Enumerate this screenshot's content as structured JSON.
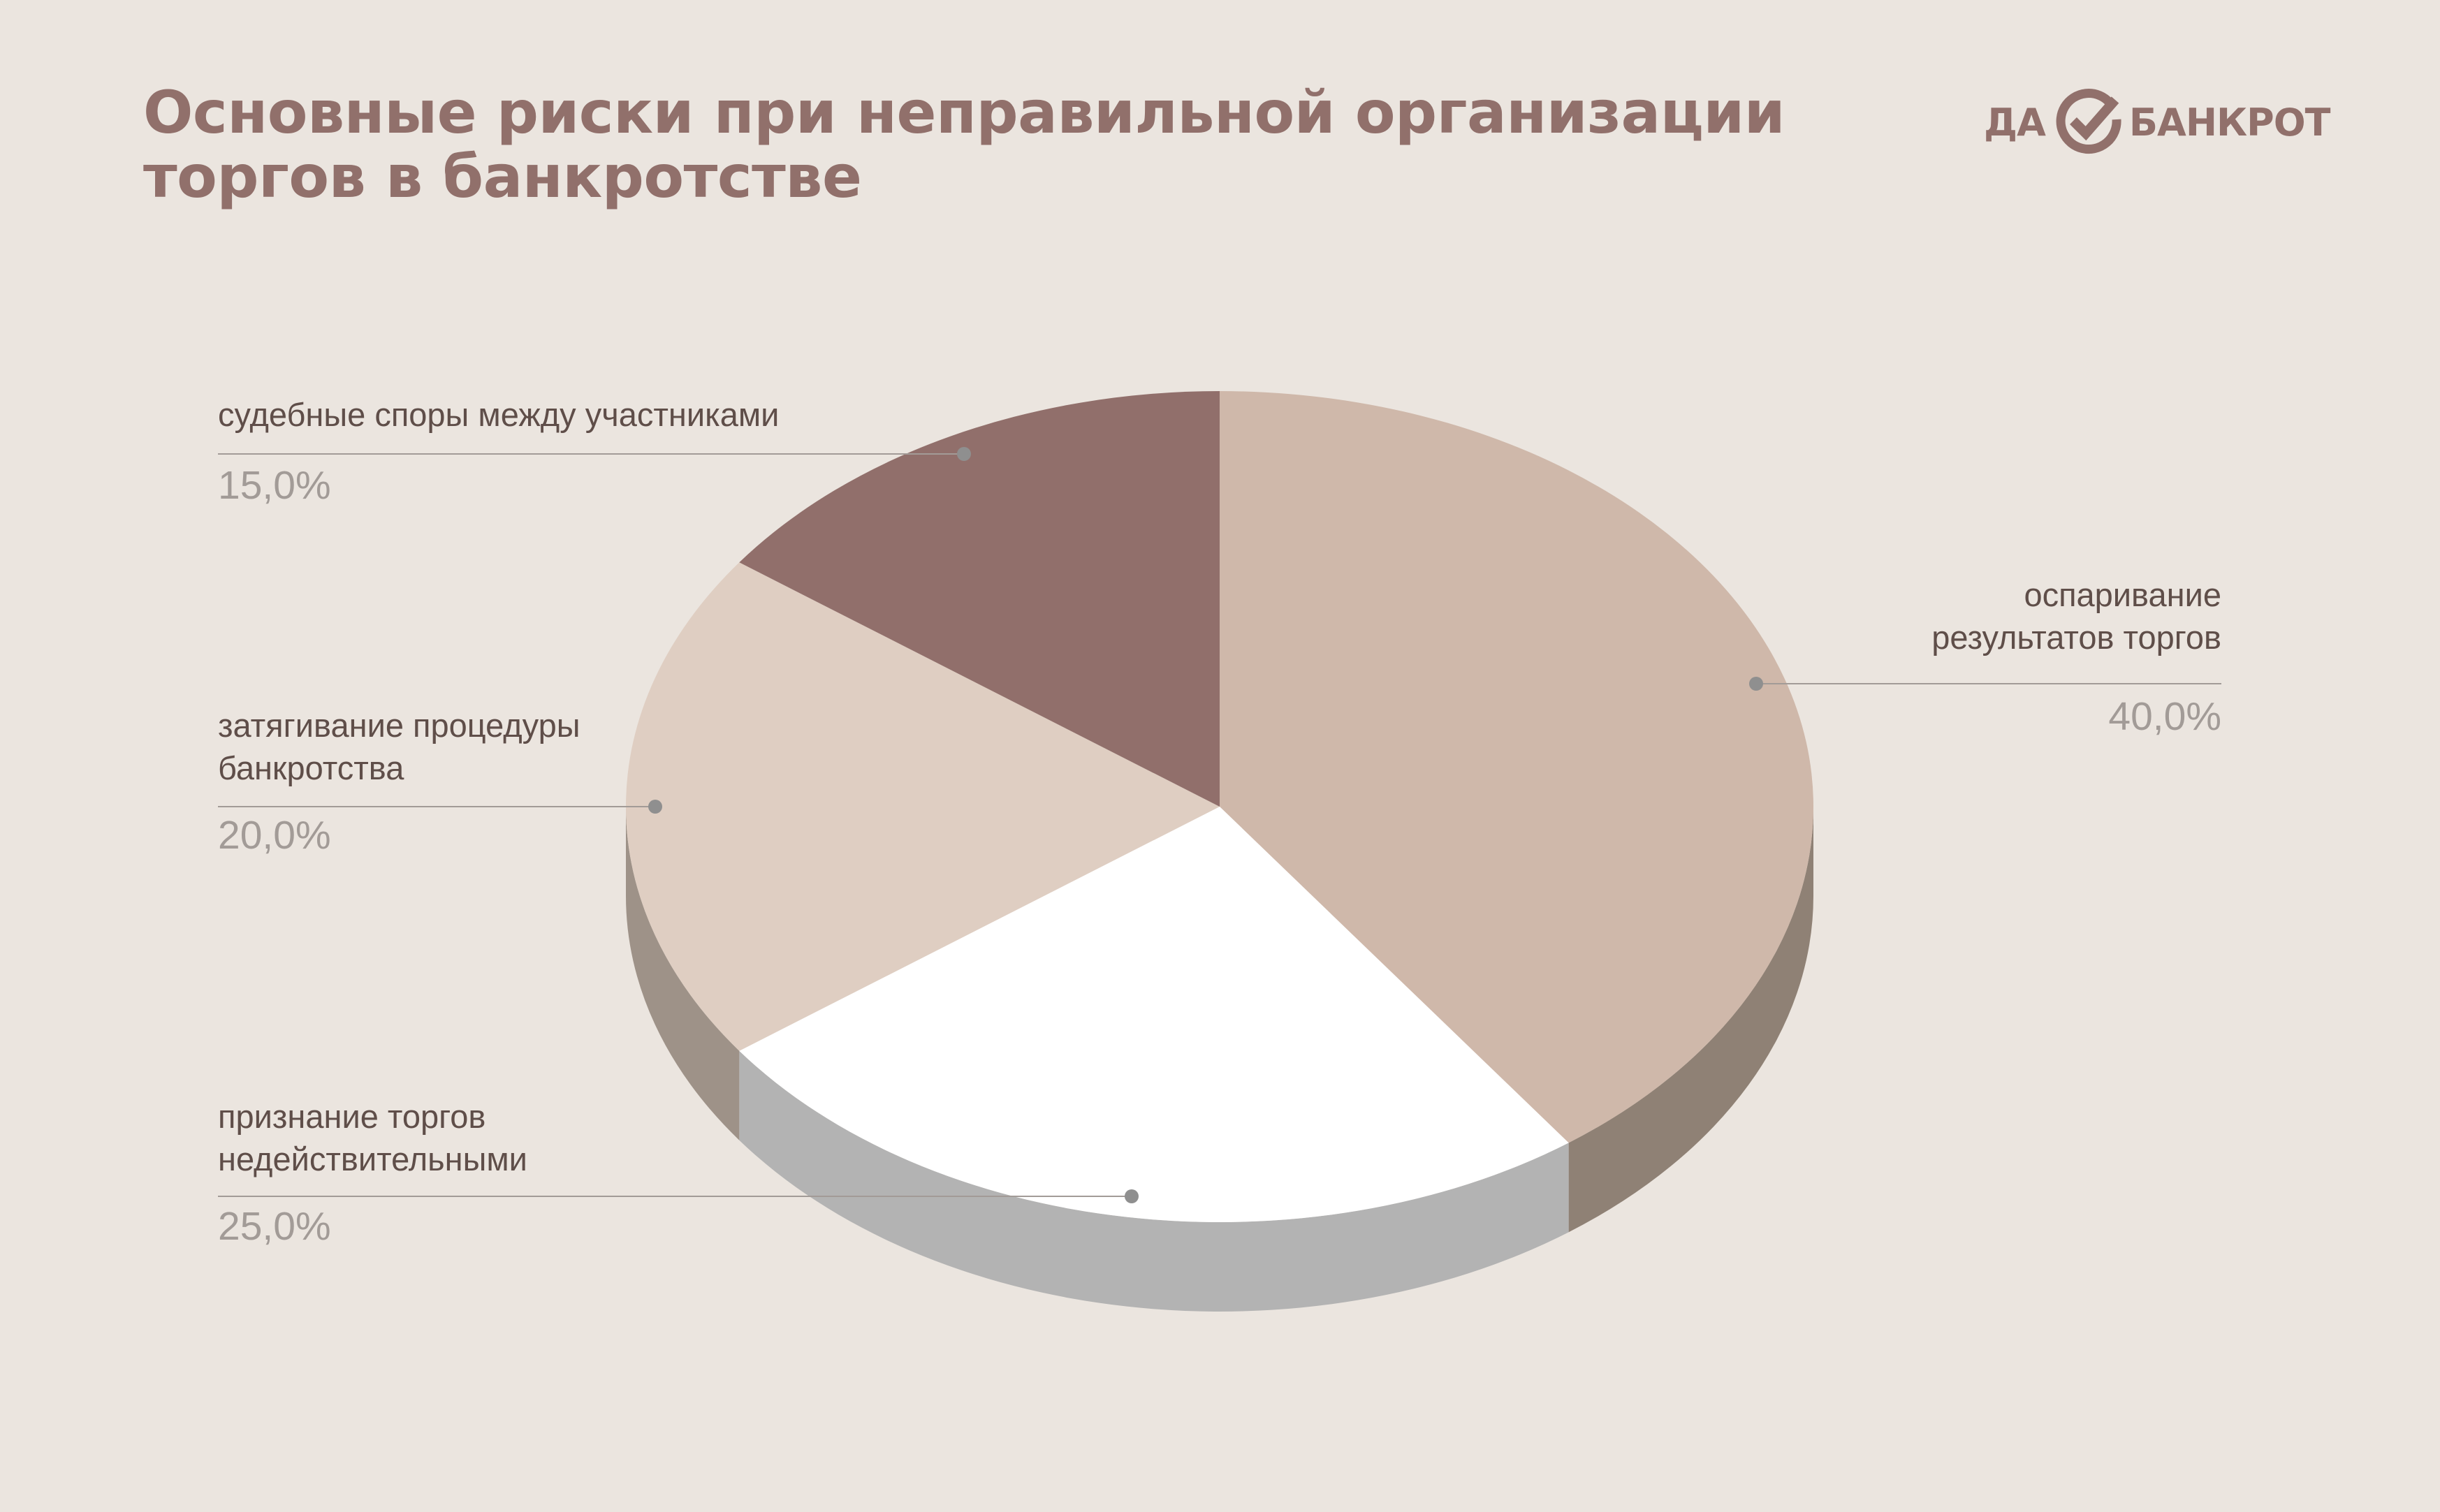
{
  "title_lines": [
    "Основные риски при неправильной организации",
    "торгов в банкротстве"
  ],
  "logo": {
    "left": "ДА",
    "right": "БАНКРОТ",
    "mark_icon": "check-circle-icon"
  },
  "colors": {
    "background": "#ebe5df",
    "accent": "#91706b",
    "leader_line": "#a29b97"
  },
  "chart_data": {
    "type": "pie",
    "style": "3d",
    "title": "Основные риски при неправильной организации торгов в банкротстве",
    "slices": [
      {
        "label_lines": [
          "оспаривание",
          "результатов торгов"
        ],
        "value": 40.0,
        "value_text": "40,0%",
        "color": "#cfb8aa",
        "side_color": "#8f8175",
        "label_side": "right"
      },
      {
        "label_lines": [
          "признание торгов",
          "недействительными"
        ],
        "value": 25.0,
        "value_text": "25,0%",
        "color": "#ffffff",
        "side_color": "#b3b3b3",
        "label_side": "left"
      },
      {
        "label_lines": [
          "затягивание процедуры",
          "банкротства"
        ],
        "value": 20.0,
        "value_text": "20,0%",
        "color": "#dfcec2",
        "side_color": "#9e9288",
        "label_side": "left"
      },
      {
        "label_lines": [
          "судебные споры между участниками"
        ],
        "value": 15.0,
        "value_text": "15,0%",
        "color": "#916f6b",
        "side_color": "#6e5552",
        "label_side": "left"
      }
    ]
  }
}
